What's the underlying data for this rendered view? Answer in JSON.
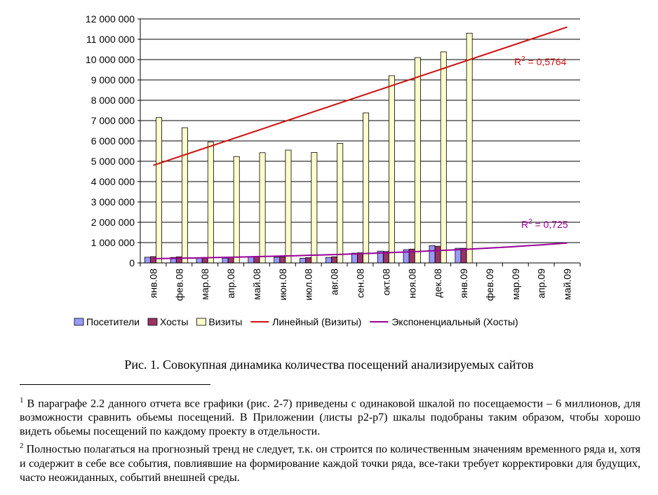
{
  "chart_data": {
    "type": "bar",
    "categories": [
      "янв.08",
      "фев.08",
      "мар.08",
      "апр.08",
      "май.08",
      "июн.08",
      "июл.08",
      "авг.08",
      "сен.08",
      "окт.08",
      "ноя.08",
      "дек.08",
      "янв.09",
      "фев.09",
      "мар.09",
      "апр.09",
      "май.09"
    ],
    "series": [
      {
        "name": "Посетители",
        "color": "#9999ff",
        "values": [
          280000,
          270000,
          250000,
          240000,
          290000,
          280000,
          230000,
          270000,
          480000,
          580000,
          650000,
          850000,
          720000,
          null,
          null,
          null,
          null
        ]
      },
      {
        "name": "Хосты",
        "color": "#993366",
        "values": [
          310000,
          300000,
          270000,
          270000,
          300000,
          290000,
          260000,
          300000,
          500000,
          560000,
          680000,
          820000,
          720000,
          null,
          null,
          null,
          null
        ]
      },
      {
        "name": "Визиты",
        "color": "#ffffcc",
        "values": [
          7150000,
          6650000,
          5950000,
          5230000,
          5420000,
          5550000,
          5430000,
          5880000,
          7380000,
          9210000,
          10100000,
          10380000,
          11300000,
          null,
          null,
          null,
          null
        ]
      }
    ],
    "trendlines": [
      {
        "name": "Линейный (Визиты)",
        "color": "#cc1111",
        "type": "linear",
        "start": 4800000,
        "end": 11600000,
        "r2_label": "R",
        "r2_value": " = 0,5764"
      },
      {
        "name": "Экспоненциальный (Хосты)",
        "color": "#990099",
        "type": "exponential",
        "start": 210000,
        "end": 980000,
        "r2_label": "R",
        "r2_value": " = 0,725"
      }
    ],
    "ylim": [
      0,
      12000000
    ],
    "ytick_step": 1000000,
    "ytick_labels": [
      "0",
      "1 000 000",
      "2 000 000",
      "3 000 000",
      "4 000 000",
      "5 000 000",
      "6 000 000",
      "7 000 000",
      "8 000 000",
      "9 000 000",
      "10 000 000",
      "11 000 000",
      "12 000 000"
    ],
    "grid": true,
    "legend_position": "bottom"
  },
  "caption": "Рис. 1. Совокупная динамика количества посещений анализируемых сайтов",
  "footnotes": [
    {
      "mark": "1",
      "text": " В параграфе 2.2 данного отчета все графики (рис. 2-7) приведены с одинаковой шкалой по посещаемости – 6 миллионов, для возможности сравнить обьемы посещений. В Приложении (листы р2-р7) шкалы подобраны таким образом, чтобы хорошо видеть обьемы посещений по каждому проекту в отдельности."
    },
    {
      "mark": "2",
      "text": " Полностью полагаться на прогнозный тренд не следует, т.к. он строится по количественным значениям временного ряда и, хотя и содержит в себе все события, повлиявшие на формирование каждой точки ряда, все-таки требует корректировки для будущих, часто неожиданных, событий внешней среды."
    }
  ]
}
